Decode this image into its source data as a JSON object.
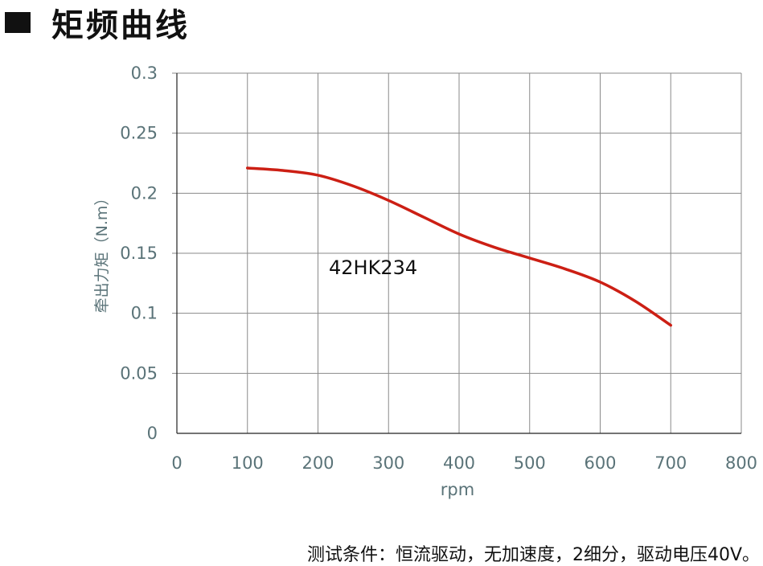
{
  "header": {
    "title": "矩频曲线"
  },
  "chart_data": {
    "type": "line",
    "xlabel": "rpm",
    "ylabel": "牵出力矩（N.m）",
    "xlim": [
      0,
      800
    ],
    "ylim": [
      0,
      0.3
    ],
    "x_ticks": [
      "0",
      "100",
      "200",
      "300",
      "400",
      "500",
      "600",
      "700",
      "800"
    ],
    "y_ticks": [
      "0",
      "0.05",
      "0.1",
      "0.15",
      "0.2",
      "0.25",
      "0.3"
    ],
    "grid": true,
    "series": [
      {
        "name": "42HK234",
        "color": "#cc1f14",
        "x": [
          100,
          150,
          200,
          250,
          300,
          350,
          400,
          450,
          500,
          550,
          600,
          650,
          700
        ],
        "y": [
          0.221,
          0.219,
          0.215,
          0.206,
          0.194,
          0.18,
          0.166,
          0.155,
          0.146,
          0.137,
          0.126,
          0.11,
          0.09
        ]
      }
    ]
  },
  "footer": {
    "note": "测试条件：恒流驱动，无加速度，2细分，驱动电压40V。"
  }
}
